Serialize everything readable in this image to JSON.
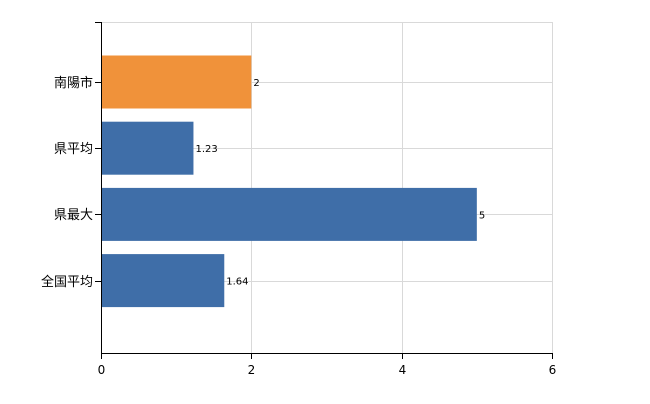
{
  "chart_data": {
    "type": "bar",
    "orientation": "horizontal",
    "categories": [
      "南陽市",
      "県平均",
      "県最大",
      "全国平均"
    ],
    "values": [
      2,
      1.23,
      5,
      1.64
    ],
    "value_labels": [
      "2",
      "1.23",
      "5",
      "1.64"
    ],
    "highlight_index": 0,
    "xlim": [
      0,
      6
    ],
    "xticks": [
      0,
      2,
      4,
      6
    ],
    "title": "",
    "xlabel": "",
    "ylabel": "",
    "grid": true,
    "legend": "none"
  },
  "colors": {
    "highlight": "#f0923a",
    "default": "#3f6ea8",
    "grid": "#d9d9d9",
    "axis": "#000000"
  }
}
